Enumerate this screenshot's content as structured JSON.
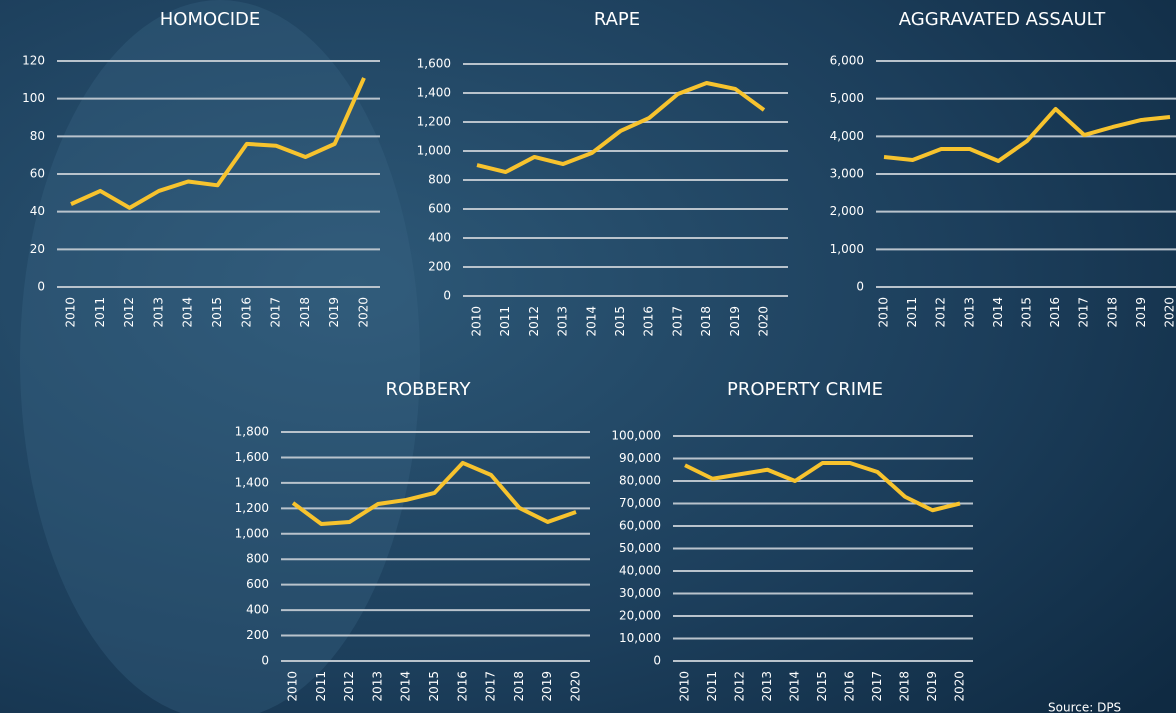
{
  "chart_data": [
    {
      "type": "line",
      "title": "HOMOCIDE",
      "categories": [
        "2010",
        "2011",
        "2012",
        "2013",
        "2014",
        "2015",
        "2016",
        "2017",
        "2018",
        "2019",
        "2020"
      ],
      "values": [
        44,
        51,
        42,
        51,
        56,
        54,
        76,
        75,
        69,
        76,
        111
      ],
      "color": "#f7c32e",
      "ylim": [
        0,
        120
      ],
      "yticks": [
        0,
        20,
        40,
        60,
        80,
        100,
        120
      ],
      "grid": true
    },
    {
      "type": "line",
      "title": "RAPE",
      "categories": [
        "2010",
        "2011",
        "2012",
        "2013",
        "2014",
        "2015",
        "2016",
        "2017",
        "2018",
        "2019",
        "2020"
      ],
      "values": [
        903,
        855,
        959,
        910,
        986,
        1138,
        1228,
        1393,
        1469,
        1428,
        1283
      ],
      "color": "#f7c32e",
      "ylim": [
        0,
        1600
      ],
      "yticks": [
        0,
        200,
        400,
        600,
        800,
        {
          "value": 1000,
          "label": "1,000"
        },
        {
          "value": 1200,
          "label": "1,200"
        },
        {
          "value": 1400,
          "label": "1,400"
        },
        {
          "value": 1600,
          "label": "1,600"
        }
      ],
      "grid": true
    },
    {
      "type": "line",
      "title": "AGGRAVATED ASSAULT",
      "categories": [
        "2010",
        "2011",
        "2012",
        "2013",
        "2014",
        "2015",
        "2016",
        "2017",
        "2018",
        "2019",
        "2020"
      ],
      "values": [
        3451,
        3372,
        3664,
        3664,
        3345,
        3876,
        4726,
        4035,
        4248,
        4434,
        4513
      ],
      "color": "#f7c32e",
      "ylim": [
        0,
        6000
      ],
      "yticks": [
        0,
        {
          "value": 1000,
          "label": "1,000"
        },
        {
          "value": 2000,
          "label": "2,000"
        },
        {
          "value": 3000,
          "label": "3,000"
        },
        {
          "value": 4000,
          "label": "4,000"
        },
        {
          "value": 5000,
          "label": "5,000"
        },
        {
          "value": 6000,
          "label": "6,000"
        }
      ],
      "grid": true
    },
    {
      "type": "line",
      "title": "ROBBERY",
      "categories": [
        "2010",
        "2011",
        "2012",
        "2013",
        "2014",
        "2015",
        "2016",
        "2017",
        "2018",
        "2019",
        "2020"
      ],
      "values": [
        1242,
        1077,
        1093,
        1234,
        1266,
        1321,
        1557,
        1462,
        1203,
        1093,
        1171
      ],
      "color": "#f7c32e",
      "ylim": [
        0,
        1800
      ],
      "yticks": [
        0,
        200,
        400,
        600,
        800,
        {
          "value": 1000,
          "label": "1,000"
        },
        {
          "value": 1200,
          "label": "1,200"
        },
        {
          "value": 1400,
          "label": "1,400"
        },
        {
          "value": 1600,
          "label": "1,600"
        },
        {
          "value": 1800,
          "label": "1,800"
        }
      ],
      "grid": true
    },
    {
      "type": "line",
      "title": "PROPERTY CRIME",
      "categories": [
        "2010",
        "2011",
        "2012",
        "2013",
        "2014",
        "2015",
        "2016",
        "2017",
        "2018",
        "2019",
        "2020"
      ],
      "values": [
        87000,
        81000,
        83000,
        85000,
        80000,
        88000,
        88000,
        84000,
        73000,
        67000,
        70000
      ],
      "color": "#f7c32e",
      "ylim": [
        0,
        100000
      ],
      "yticks": [
        0,
        {
          "value": 10000,
          "label": "10,000"
        },
        {
          "value": 20000,
          "label": "20,000"
        },
        {
          "value": 30000,
          "label": "30,000"
        },
        {
          "value": 40000,
          "label": "40,000"
        },
        {
          "value": 50000,
          "label": "50,000"
        },
        {
          "value": 60000,
          "label": "60,000"
        },
        {
          "value": 70000,
          "label": "70,000"
        },
        {
          "value": 80000,
          "label": "80,000"
        },
        {
          "value": 90000,
          "label": "90,000"
        },
        {
          "value": 100000,
          "label": "100,000"
        }
      ],
      "grid": true
    }
  ],
  "source": "Source: DPS"
}
